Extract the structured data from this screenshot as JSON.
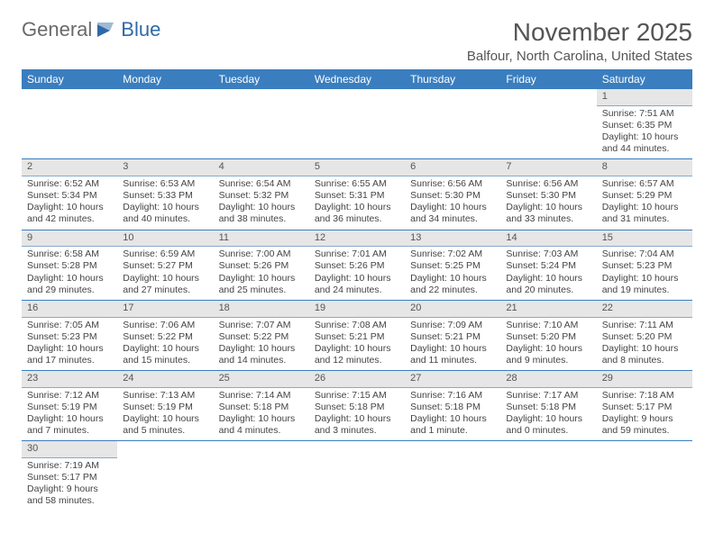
{
  "logo": {
    "text1": "General",
    "text2": "Blue"
  },
  "title": "November 2025",
  "location": "Balfour, North Carolina, United States",
  "colors": {
    "header_bg": "#3a7ebf",
    "header_fg": "#ffffff",
    "daynum_bg": "#e6e6e6",
    "row_border": "#3a7ebf",
    "text": "#444444",
    "title_color": "#555555"
  },
  "daysOfWeek": [
    "Sunday",
    "Monday",
    "Tuesday",
    "Wednesday",
    "Thursday",
    "Friday",
    "Saturday"
  ],
  "weeks": [
    [
      {
        "day": null
      },
      {
        "day": null
      },
      {
        "day": null
      },
      {
        "day": null
      },
      {
        "day": null
      },
      {
        "day": null
      },
      {
        "day": 1,
        "sunrise": "7:51 AM",
        "sunset": "6:35 PM",
        "daylight": "10 hours and 44 minutes."
      }
    ],
    [
      {
        "day": 2,
        "sunrise": "6:52 AM",
        "sunset": "5:34 PM",
        "daylight": "10 hours and 42 minutes."
      },
      {
        "day": 3,
        "sunrise": "6:53 AM",
        "sunset": "5:33 PM",
        "daylight": "10 hours and 40 minutes."
      },
      {
        "day": 4,
        "sunrise": "6:54 AM",
        "sunset": "5:32 PM",
        "daylight": "10 hours and 38 minutes."
      },
      {
        "day": 5,
        "sunrise": "6:55 AM",
        "sunset": "5:31 PM",
        "daylight": "10 hours and 36 minutes."
      },
      {
        "day": 6,
        "sunrise": "6:56 AM",
        "sunset": "5:30 PM",
        "daylight": "10 hours and 34 minutes."
      },
      {
        "day": 7,
        "sunrise": "6:56 AM",
        "sunset": "5:30 PM",
        "daylight": "10 hours and 33 minutes."
      },
      {
        "day": 8,
        "sunrise": "6:57 AM",
        "sunset": "5:29 PM",
        "daylight": "10 hours and 31 minutes."
      }
    ],
    [
      {
        "day": 9,
        "sunrise": "6:58 AM",
        "sunset": "5:28 PM",
        "daylight": "10 hours and 29 minutes."
      },
      {
        "day": 10,
        "sunrise": "6:59 AM",
        "sunset": "5:27 PM",
        "daylight": "10 hours and 27 minutes."
      },
      {
        "day": 11,
        "sunrise": "7:00 AM",
        "sunset": "5:26 PM",
        "daylight": "10 hours and 25 minutes."
      },
      {
        "day": 12,
        "sunrise": "7:01 AM",
        "sunset": "5:26 PM",
        "daylight": "10 hours and 24 minutes."
      },
      {
        "day": 13,
        "sunrise": "7:02 AM",
        "sunset": "5:25 PM",
        "daylight": "10 hours and 22 minutes."
      },
      {
        "day": 14,
        "sunrise": "7:03 AM",
        "sunset": "5:24 PM",
        "daylight": "10 hours and 20 minutes."
      },
      {
        "day": 15,
        "sunrise": "7:04 AM",
        "sunset": "5:23 PM",
        "daylight": "10 hours and 19 minutes."
      }
    ],
    [
      {
        "day": 16,
        "sunrise": "7:05 AM",
        "sunset": "5:23 PM",
        "daylight": "10 hours and 17 minutes."
      },
      {
        "day": 17,
        "sunrise": "7:06 AM",
        "sunset": "5:22 PM",
        "daylight": "10 hours and 15 minutes."
      },
      {
        "day": 18,
        "sunrise": "7:07 AM",
        "sunset": "5:22 PM",
        "daylight": "10 hours and 14 minutes."
      },
      {
        "day": 19,
        "sunrise": "7:08 AM",
        "sunset": "5:21 PM",
        "daylight": "10 hours and 12 minutes."
      },
      {
        "day": 20,
        "sunrise": "7:09 AM",
        "sunset": "5:21 PM",
        "daylight": "10 hours and 11 minutes."
      },
      {
        "day": 21,
        "sunrise": "7:10 AM",
        "sunset": "5:20 PM",
        "daylight": "10 hours and 9 minutes."
      },
      {
        "day": 22,
        "sunrise": "7:11 AM",
        "sunset": "5:20 PM",
        "daylight": "10 hours and 8 minutes."
      }
    ],
    [
      {
        "day": 23,
        "sunrise": "7:12 AM",
        "sunset": "5:19 PM",
        "daylight": "10 hours and 7 minutes."
      },
      {
        "day": 24,
        "sunrise": "7:13 AM",
        "sunset": "5:19 PM",
        "daylight": "10 hours and 5 minutes."
      },
      {
        "day": 25,
        "sunrise": "7:14 AM",
        "sunset": "5:18 PM",
        "daylight": "10 hours and 4 minutes."
      },
      {
        "day": 26,
        "sunrise": "7:15 AM",
        "sunset": "5:18 PM",
        "daylight": "10 hours and 3 minutes."
      },
      {
        "day": 27,
        "sunrise": "7:16 AM",
        "sunset": "5:18 PM",
        "daylight": "10 hours and 1 minute."
      },
      {
        "day": 28,
        "sunrise": "7:17 AM",
        "sunset": "5:18 PM",
        "daylight": "10 hours and 0 minutes."
      },
      {
        "day": 29,
        "sunrise": "7:18 AM",
        "sunset": "5:17 PM",
        "daylight": "9 hours and 59 minutes."
      }
    ],
    [
      {
        "day": 30,
        "sunrise": "7:19 AM",
        "sunset": "5:17 PM",
        "daylight": "9 hours and 58 minutes."
      },
      {
        "day": null
      },
      {
        "day": null
      },
      {
        "day": null
      },
      {
        "day": null
      },
      {
        "day": null
      },
      {
        "day": null
      }
    ]
  ],
  "labels": {
    "sunrise": "Sunrise:",
    "sunset": "Sunset:",
    "daylight": "Daylight:"
  }
}
